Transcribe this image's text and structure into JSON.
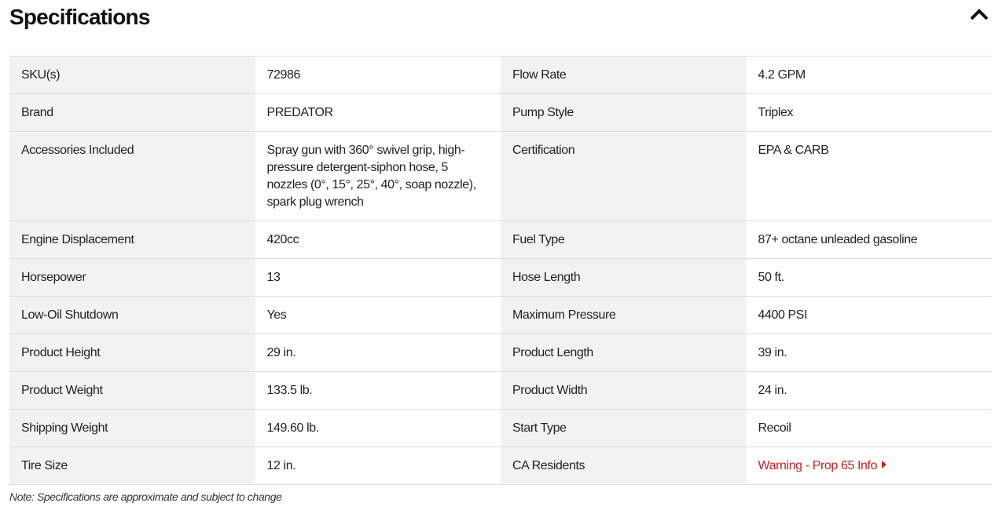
{
  "title": "Specifications",
  "collapse_icon": "chevron-up-icon",
  "accent_color": "#cc1f1f",
  "rows": [
    [
      {
        "label": "SKU(s)",
        "value": "72986"
      },
      {
        "label": "Flow Rate",
        "value": "4.2 GPM"
      }
    ],
    [
      {
        "label": "Brand",
        "value": "PREDATOR"
      },
      {
        "label": "Pump Style",
        "value": "Triplex"
      }
    ],
    [
      {
        "label": "Accessories Included",
        "value": "Spray gun with 360° swivel grip, high-pressure detergent-siphon hose, 5 nozzles (0°, 15°, 25°, 40°, soap nozzle), spark plug wrench"
      },
      {
        "label": "Certification",
        "value": "EPA & CARB"
      }
    ],
    [
      {
        "label": "Engine Displacement",
        "value": "420cc"
      },
      {
        "label": "Fuel Type",
        "value": "87+ octane unleaded gasoline"
      }
    ],
    [
      {
        "label": "Horsepower",
        "value": "13"
      },
      {
        "label": "Hose Length",
        "value": "50 ft."
      }
    ],
    [
      {
        "label": "Low-Oil Shutdown",
        "value": "Yes"
      },
      {
        "label": "Maximum Pressure",
        "value": "4400 PSI"
      }
    ],
    [
      {
        "label": "Product Height",
        "value": "29 in."
      },
      {
        "label": "Product Length",
        "value": "39 in."
      }
    ],
    [
      {
        "label": "Product Weight",
        "value": "133.5 lb."
      },
      {
        "label": "Product Width",
        "value": "24 in."
      }
    ],
    [
      {
        "label": "Shipping Weight",
        "value": "149.60 lb."
      },
      {
        "label": "Start Type",
        "value": "Recoil"
      }
    ],
    [
      {
        "label": "Tire Size",
        "value": "12 in."
      },
      {
        "label": "CA Residents",
        "value": "Warning - Prop 65 Info",
        "link": true
      }
    ]
  ],
  "note": "Note: Specifications are approximate and subject to change"
}
